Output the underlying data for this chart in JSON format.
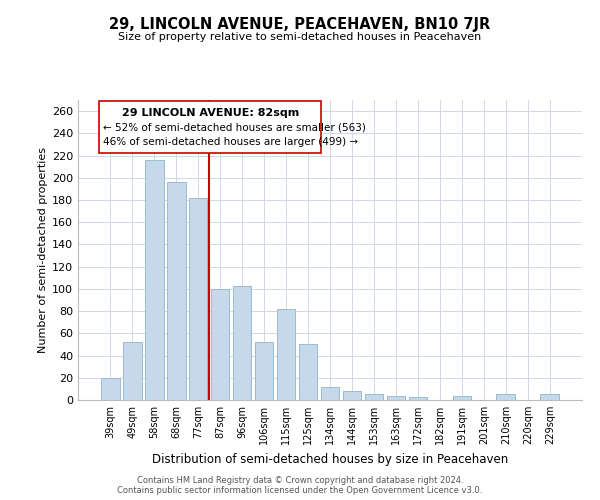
{
  "title": "29, LINCOLN AVENUE, PEACEHAVEN, BN10 7JR",
  "subtitle": "Size of property relative to semi-detached houses in Peacehaven",
  "xlabel": "Distribution of semi-detached houses by size in Peacehaven",
  "ylabel": "Number of semi-detached properties",
  "bar_color": "#c5d9ea",
  "bar_edge_color": "#9abcd4",
  "categories": [
    "39sqm",
    "49sqm",
    "58sqm",
    "68sqm",
    "77sqm",
    "87sqm",
    "96sqm",
    "106sqm",
    "115sqm",
    "125sqm",
    "134sqm",
    "144sqm",
    "153sqm",
    "163sqm",
    "172sqm",
    "182sqm",
    "191sqm",
    "201sqm",
    "210sqm",
    "220sqm",
    "229sqm"
  ],
  "values": [
    20,
    52,
    216,
    196,
    182,
    100,
    103,
    52,
    82,
    50,
    12,
    8,
    5,
    4,
    3,
    0,
    4,
    0,
    5,
    0,
    5
  ],
  "vline_x_idx": 4.5,
  "vline_color": "#cc0000",
  "ylim": [
    0,
    270
  ],
  "yticks": [
    0,
    20,
    40,
    60,
    80,
    100,
    120,
    140,
    160,
    180,
    200,
    220,
    240,
    260
  ],
  "annotation_title": "29 LINCOLN AVENUE: 82sqm",
  "annotation_line1": "← 52% of semi-detached houses are smaller (563)",
  "annotation_line2": "46% of semi-detached houses are larger (499) →",
  "footer1": "Contains HM Land Registry data © Crown copyright and database right 2024.",
  "footer2": "Contains public sector information licensed under the Open Government Licence v3.0.",
  "background_color": "#ffffff",
  "grid_color": "#d0d8e4"
}
